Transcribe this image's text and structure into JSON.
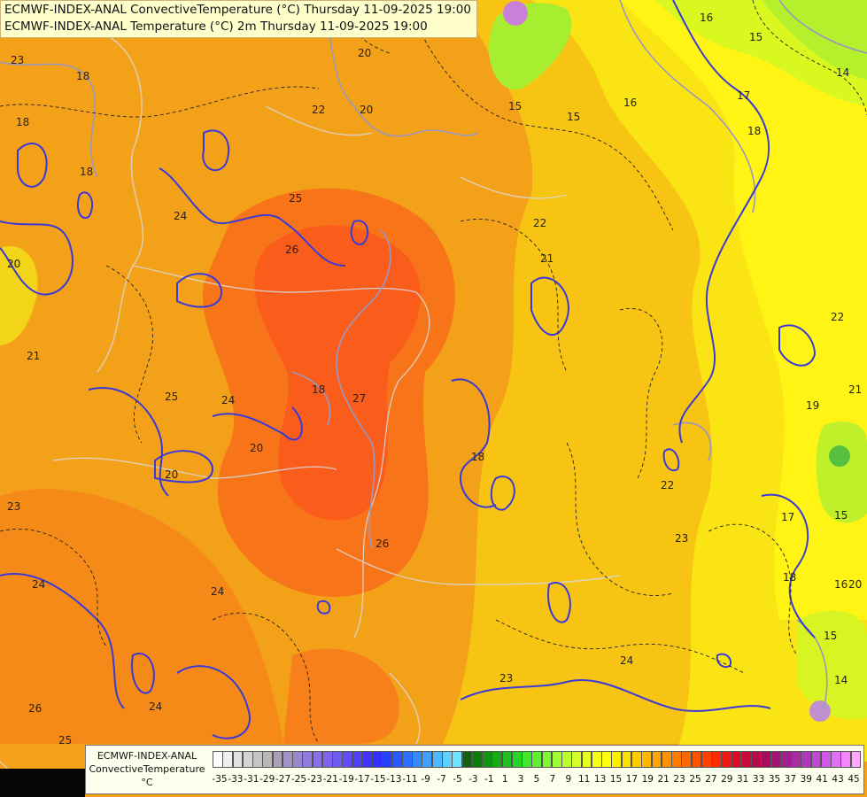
{
  "header": {
    "line1": "ECMWF-INDEX-ANAL ConvectiveTemperature (°C) Thursday 11-09-2025 19:00",
    "line2": "ECMWF-INDEX-ANAL Temperature (°C) 2m Thursday 11-09-2025 19:00"
  },
  "legend": {
    "title1": "ECMWF-INDEX-ANAL",
    "title2": "ConvectiveTemperature",
    "unit": "°C",
    "colors": [
      "#ffffff",
      "#f0f0f0",
      "#e2e2e2",
      "#d4d4d4",
      "#c6c6c6",
      "#b8b8b8",
      "#aaa0b8",
      "#a094c4",
      "#9888d0",
      "#907cdc",
      "#8870e8",
      "#8064f0",
      "#7058f4",
      "#604cf8",
      "#5040fa",
      "#4034fc",
      "#3030ff",
      "#2a40ff",
      "#2a58ff",
      "#3070ff",
      "#3888ff",
      "#40a0ff",
      "#50b8ff",
      "#60d0ff",
      "#70e4ff",
      "#106010",
      "#107a10",
      "#149414",
      "#18aa18",
      "#20c020",
      "#28d428",
      "#40e830",
      "#60f030",
      "#80f830",
      "#a0ff30",
      "#bcff30",
      "#d4ff28",
      "#e8ff20",
      "#f8ff18",
      "#ffff10",
      "#fff000",
      "#ffe000",
      "#ffcc00",
      "#ffb800",
      "#ffa400",
      "#ff9000",
      "#ff7c00",
      "#ff6800",
      "#ff5400",
      "#ff4000",
      "#ff2c00",
      "#f01818",
      "#e00a28",
      "#cc0838",
      "#b80a48",
      "#a80c5c",
      "#a01474",
      "#a0208c",
      "#a82ca4",
      "#b038bc",
      "#c048d4",
      "#d058e8",
      "#e070f4",
      "#f088fc",
      "#ffa8ff"
    ],
    "ticks": [
      "-35",
      "-33",
      "-31",
      "-29",
      "-27",
      "-25",
      "-23",
      "-21",
      "-19",
      "-17",
      "-15",
      "-13",
      "-11",
      "-9",
      "-7",
      "-5",
      "-3",
      "-1",
      "1",
      "3",
      "5",
      "7",
      "9",
      "11",
      "13",
      "15",
      "17",
      "19",
      "21",
      "23",
      "25",
      "27",
      "29",
      "31",
      "33",
      "35",
      "37",
      "39",
      "41",
      "43",
      "45"
    ]
  },
  "contour_labels": [
    "23",
    "18",
    "18",
    "20",
    "22",
    "20",
    "15",
    "16",
    "16",
    "15",
    "14",
    "17",
    "18",
    "15",
    "25",
    "24",
    "18",
    "26",
    "22",
    "21",
    "20",
    "21",
    "22",
    "27",
    "18",
    "19",
    "25",
    "24",
    "20",
    "26",
    "17",
    "15",
    "22",
    "23",
    "20",
    "16",
    "18",
    "24",
    "26",
    "24",
    "20",
    "23",
    "24",
    "25",
    "24",
    "21",
    "23",
    "18",
    "15",
    "14"
  ]
}
